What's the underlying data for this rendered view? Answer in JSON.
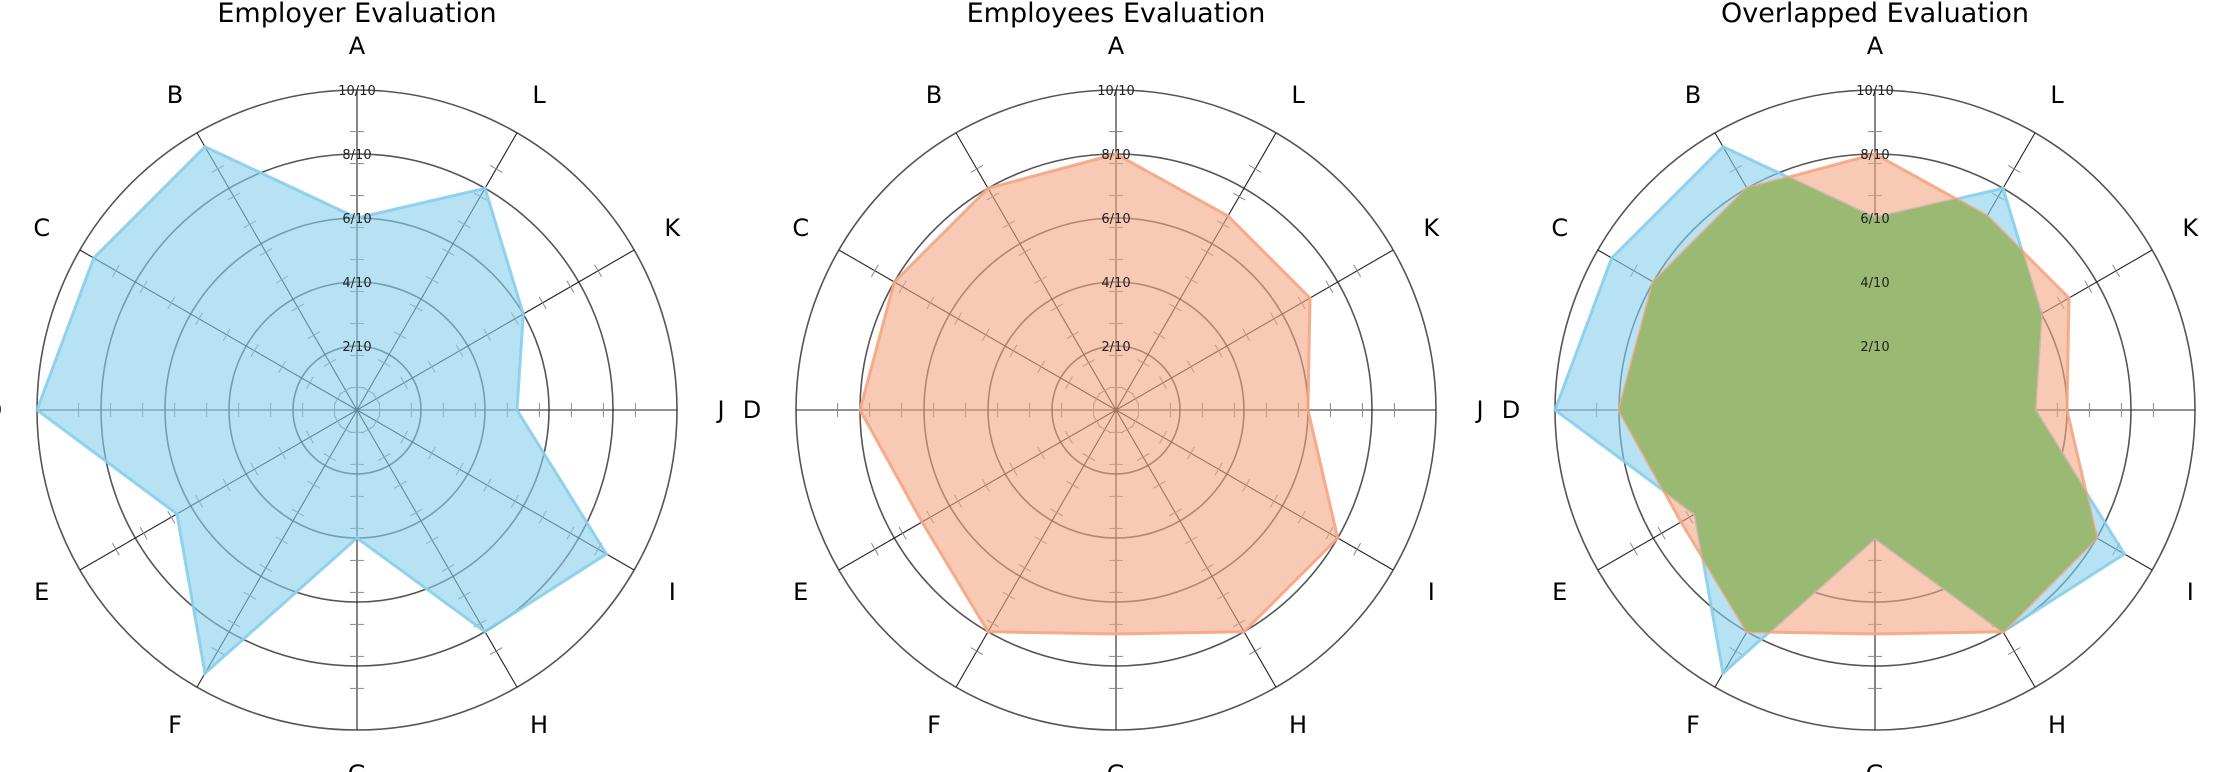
{
  "chart_data": [
    {
      "type": "radar",
      "title": "Employer Evaluation",
      "axes": [
        "A",
        "B",
        "C",
        "D",
        "E",
        "F",
        "G",
        "H",
        "I",
        "J",
        "K",
        "L"
      ],
      "rmax": 10,
      "ring_ticks": [
        "2/10",
        "4/10",
        "6/10",
        "8/10",
        "10/10"
      ],
      "series": [
        {
          "values": [
            6,
            9.5,
            9.5,
            10,
            6.5,
            9.5,
            4,
            8,
            9,
            5,
            6,
            8
          ],
          "color": "#87CEEB"
        }
      ]
    },
    {
      "type": "radar",
      "title": "Employees Evaluation",
      "axes": [
        "A",
        "B",
        "C",
        "D",
        "E",
        "F",
        "G",
        "H",
        "I",
        "J",
        "K",
        "L"
      ],
      "rmax": 10,
      "ring_ticks": [
        "2/10",
        "4/10",
        "6/10",
        "8/10",
        "10/10"
      ],
      "series": [
        {
          "values": [
            8,
            8,
            8,
            8,
            7,
            8,
            7,
            8,
            8,
            6,
            7,
            7
          ],
          "color": "#F4A582"
        }
      ]
    },
    {
      "type": "radar",
      "title": "Overlapped Evaluation",
      "axes": [
        "A",
        "B",
        "C",
        "D",
        "E",
        "F",
        "G",
        "H",
        "I",
        "J",
        "K",
        "L"
      ],
      "rmax": 10,
      "ring_ticks": [
        "2/10",
        "4/10",
        "6/10",
        "8/10",
        "10/10"
      ],
      "series": [
        {
          "values": [
            6,
            9.5,
            9.5,
            10,
            6.5,
            9.5,
            4,
            8,
            9,
            5,
            6,
            8
          ],
          "color": "#87CEEB"
        },
        {
          "values": [
            8,
            8,
            8,
            8,
            7,
            8,
            7,
            8,
            8,
            6,
            7,
            7
          ],
          "color": "#F4A582"
        }
      ],
      "overlap_color": "#9AB973"
    }
  ]
}
